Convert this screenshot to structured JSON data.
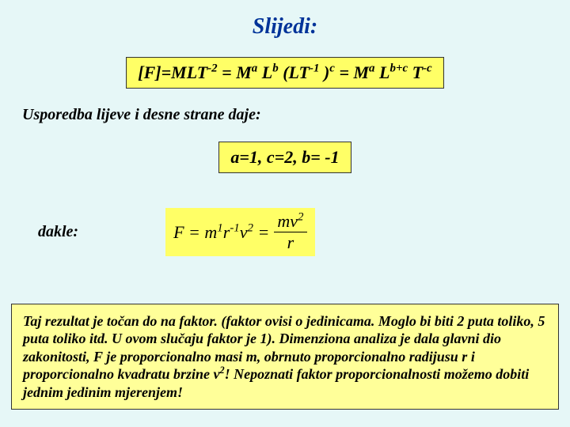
{
  "title": "Slijedi:",
  "eq1": {
    "p1": "[F]=MLT",
    "e1": "-2",
    "p2": " = M",
    "e2": "a",
    "p3": "L",
    "e3": "b",
    "p4": " (LT",
    "e4": "-1",
    "p5": ")",
    "e5": "c",
    "p6": " = M",
    "e6": "a",
    "p7": "L",
    "e7": "b+c",
    "p8": "T",
    "e8": "-c"
  },
  "compare_line": "Usporedba lijeve i desne strane daje:",
  "eq2": "a=1, c=2, b= -1",
  "dakle_label": "dakle:",
  "formula": {
    "lhs": "F = m",
    "e1": "1",
    "r": "r",
    "e2": "-1",
    "v": "v",
    "e3": "2",
    "eq": " = ",
    "num_m": "mv",
    "num_e": "2",
    "den": "r"
  },
  "paragraph": {
    "t1": "Taj rezultat je točan do na faktor. (faktor ovisi o jedinicama. Moglo bi biti 2 puta toliko, 5 puta toliko itd. U ovom slučaju faktor je 1). Dimenziona analiza je dala glavni dio zakonitosti, F je proporcionalno masi m, obrnuto proporcionalno radijusu r i proporcionalno kvadratu brzine v",
    "exp": "2",
    "t2": "! Nepoznati faktor proporcionalnosti možemo dobiti jednim jedinim mjerenjem!"
  },
  "colors": {
    "page_bg": "#e6f7f7",
    "title_color": "#003399",
    "highlight_bg": "#ffff66",
    "para_bg": "#ffff99",
    "border": "#333333",
    "text": "#000000"
  }
}
